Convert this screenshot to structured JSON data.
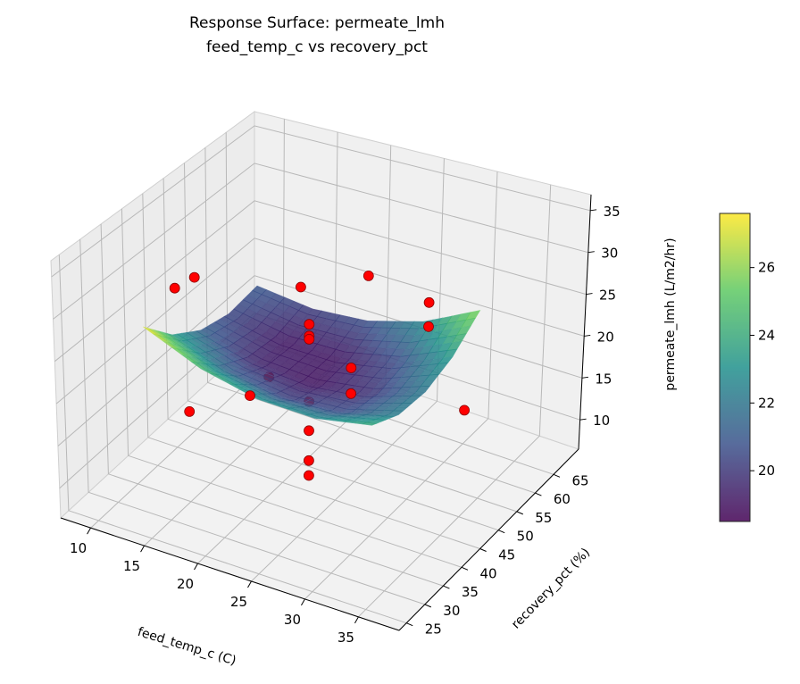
{
  "chart_data": {
    "type": "surface3d",
    "title": "Response Surface: permeate_lmh",
    "subtitle": "feed_temp_c vs recovery_pct",
    "xlabel": "feed_temp_c (C)",
    "ylabel": "recovery_pct (%)",
    "zlabel": "permeate_lmh (L/m2/hr)",
    "xlim": [
      7.2,
      38.8
    ],
    "ylim": [
      23,
      71.8
    ],
    "zlim": [
      6.5,
      36.9
    ],
    "xticks": [
      10,
      15,
      20,
      25,
      30,
      35
    ],
    "yticks": [
      25,
      30,
      35,
      40,
      45,
      50,
      55,
      60,
      65
    ],
    "zticks": [
      10,
      15,
      20,
      25,
      30,
      35
    ],
    "grid": true,
    "colormap": "viridis",
    "surface": {
      "x": [
        12,
        17.25,
        22.5,
        27.75,
        33
      ],
      "y": [
        32,
        39,
        46,
        53,
        60
      ],
      "z": [
        [
          27.48,
          23.72,
          21.38,
          20.47,
          20.97
        ],
        [
          24.53,
          21.31,
          19.5,
          19.12,
          20.16
        ],
        [
          22.97,
          20.27,
          19.0,
          19.15,
          20.72
        ],
        [
          22.78,
          20.62,
          19.88,
          20.55,
          22.66
        ],
        [
          23.97,
          22.34,
          22.13,
          23.34,
          25.97
        ]
      ]
    },
    "points": {
      "color": "#ff0000",
      "x": [
        10,
        13,
        15,
        30,
        30,
        15,
        30,
        30,
        37,
        22.5,
        22.5,
        18,
        22.5,
        22.5,
        22.5,
        22.5,
        22.5,
        22.5,
        22.5
      ],
      "y": [
        45,
        42,
        35,
        35,
        35,
        55,
        55,
        55,
        45,
        30,
        60,
        55,
        45,
        45,
        45,
        45,
        45,
        45,
        45
      ],
      "z": [
        26.2,
        29.9,
        17.3,
        28.3,
        25.3,
        12.9,
        25.0,
        27.9,
        21.9,
        24.2,
        26.3,
        25.3,
        26.6,
        25.2,
        24.8,
        17.3,
        13.8,
        10.2,
        8.4
      ]
    },
    "colorbar": {
      "range": [
        18.5,
        27.6
      ],
      "ticks": [
        20,
        22,
        24,
        26
      ]
    }
  }
}
